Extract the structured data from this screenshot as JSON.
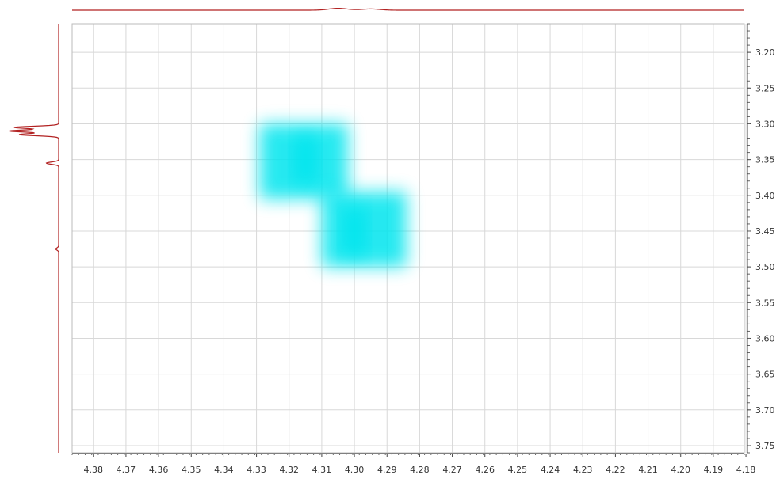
{
  "chart_data": {
    "type": "heatmap",
    "title": "",
    "xlabel": "",
    "ylabel": "",
    "x_axis": {
      "ticks": [
        4.38,
        4.37,
        4.36,
        4.35,
        4.34,
        4.33,
        4.32,
        4.31,
        4.3,
        4.29,
        4.28,
        4.27,
        4.26,
        4.25,
        4.24,
        4.23,
        4.22,
        4.21,
        4.2,
        4.19,
        4.18
      ],
      "tick_labels": [
        "4.38",
        "4.37",
        "4.36",
        "4.35",
        "4.34",
        "4.33",
        "4.32",
        "4.31",
        "4.30",
        "4.29",
        "4.28",
        "4.27",
        "4.26",
        "4.25",
        "4.24",
        "4.23",
        "4.22",
        "4.21",
        "4.20",
        "4.19",
        "4.18"
      ],
      "range": [
        4.3865,
        4.1805
      ],
      "reversed": true
    },
    "y_axis": {
      "ticks": [
        3.2,
        3.25,
        3.3,
        3.35,
        3.4,
        3.45,
        3.5,
        3.55,
        3.6,
        3.65,
        3.7,
        3.75
      ],
      "tick_labels": [
        "3.20",
        "3.25",
        "3.30",
        "3.35",
        "3.40",
        "3.45",
        "3.50",
        "3.55",
        "3.60",
        "3.65",
        "3.70",
        "3.75"
      ],
      "range": [
        3.16,
        3.76
      ],
      "position": "right"
    },
    "grid": true,
    "cross_peaks": [
      {
        "x": 4.315,
        "y": 3.35,
        "x_span": [
          4.329,
          4.302
        ],
        "y_span": [
          3.3,
          3.405
        ],
        "intensity": 1.0
      },
      {
        "x": 4.3,
        "y": 3.45,
        "x_span": [
          4.31,
          4.284
        ],
        "y_span": [
          3.395,
          3.5
        ],
        "intensity": 1.0
      }
    ],
    "colors": {
      "peak": "#00e5ee",
      "projection": "#b22222",
      "grid": "#d8d8d8",
      "frame": "#444444"
    },
    "projections": {
      "top": {
        "description_free": true,
        "peaks": [
          {
            "x": 4.305,
            "height": 0.06
          },
          {
            "x": 4.295,
            "height": 0.04
          }
        ]
      },
      "left": {
        "peaks": [
          {
            "y": 3.305,
            "height": 0.9
          },
          {
            "y": 3.31,
            "height": 1.0
          },
          {
            "y": 3.315,
            "height": 0.8
          },
          {
            "y": 3.355,
            "height": 0.25
          },
          {
            "y": 3.475,
            "height": 0.06
          }
        ]
      }
    },
    "x_unit_label_partial": "(...)"
  }
}
